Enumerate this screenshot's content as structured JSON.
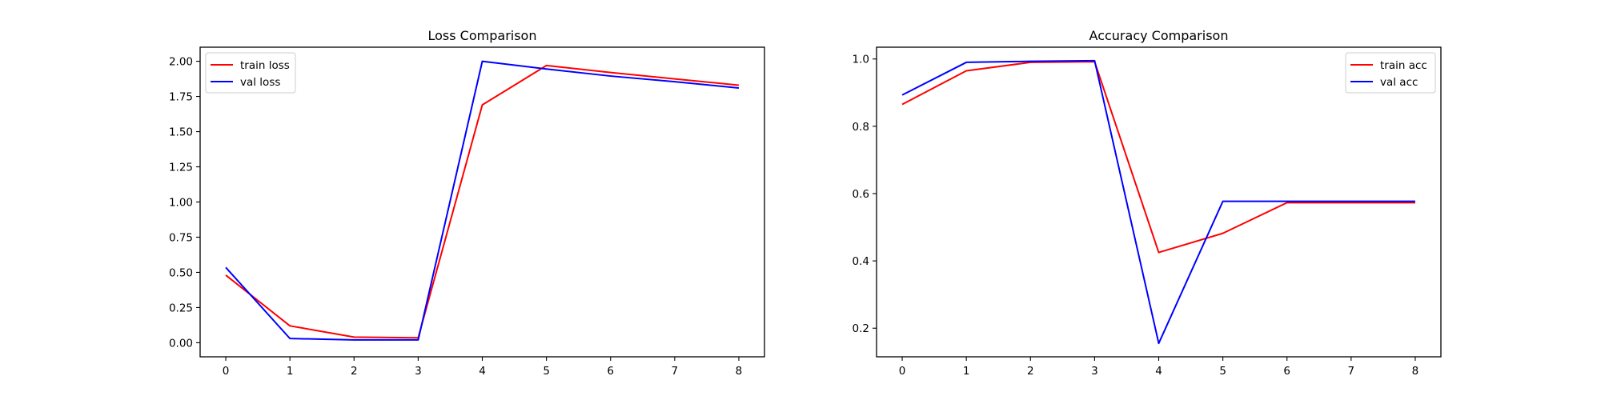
{
  "chart_data": [
    {
      "type": "line",
      "title": "Loss Comparison",
      "xlabel": "",
      "ylabel": "",
      "x": [
        0,
        1,
        2,
        3,
        4,
        5,
        6,
        7,
        8
      ],
      "xlim": [
        -0.4,
        8.4
      ],
      "ylim": [
        -0.1,
        2.1
      ],
      "xticks": [
        "0",
        "1",
        "2",
        "3",
        "4",
        "5",
        "6",
        "7",
        "8"
      ],
      "yticks": [
        "0.00",
        "0.25",
        "0.50",
        "0.75",
        "1.00",
        "1.25",
        "1.50",
        "1.75",
        "2.00"
      ],
      "ytick_values": [
        0,
        0.25,
        0.5,
        0.75,
        1.0,
        1.25,
        1.5,
        1.75,
        2.0
      ],
      "legend_position": "upper-left",
      "grid": false,
      "series": [
        {
          "name": "train loss",
          "color": "#ff0000",
          "values": [
            0.48,
            0.12,
            0.04,
            0.035,
            1.69,
            1.97,
            1.92,
            1.875,
            1.83
          ]
        },
        {
          "name": "val loss",
          "color": "#0000ff",
          "values": [
            0.535,
            0.03,
            0.02,
            0.02,
            2.0,
            1.945,
            1.895,
            1.855,
            1.81
          ]
        }
      ]
    },
    {
      "type": "line",
      "title": "Accuracy Comparison",
      "xlabel": "",
      "ylabel": "",
      "x": [
        0,
        1,
        2,
        3,
        4,
        5,
        6,
        7,
        8
      ],
      "xlim": [
        -0.4,
        8.4
      ],
      "ylim": [
        0.115,
        1.035
      ],
      "xticks": [
        "0",
        "1",
        "2",
        "3",
        "4",
        "5",
        "6",
        "7",
        "8"
      ],
      "yticks": [
        "0.2",
        "0.4",
        "0.6",
        "0.8",
        "1.0"
      ],
      "ytick_values": [
        0.2,
        0.4,
        0.6,
        0.8,
        1.0
      ],
      "legend_position": "upper-right",
      "grid": false,
      "series": [
        {
          "name": "train acc",
          "color": "#ff0000",
          "values": [
            0.865,
            0.965,
            0.99,
            0.992,
            0.425,
            0.482,
            0.573,
            0.573,
            0.573
          ]
        },
        {
          "name": "val acc",
          "color": "#0000ff",
          "values": [
            0.893,
            0.99,
            0.993,
            0.995,
            0.155,
            0.577,
            0.577,
            0.577,
            0.577
          ]
        }
      ]
    }
  ]
}
